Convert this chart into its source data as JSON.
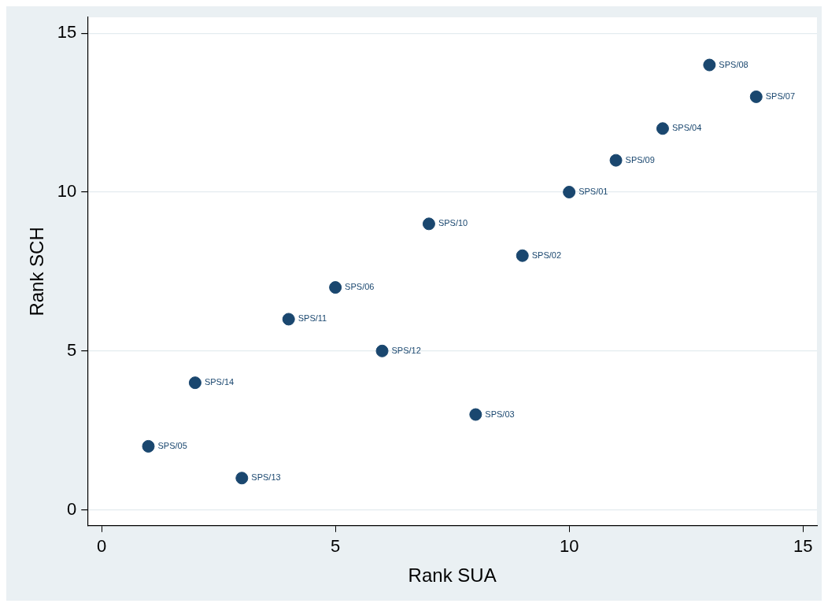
{
  "chart_data": {
    "type": "scatter",
    "xlabel": "Rank SUA",
    "ylabel": "Rank SCH",
    "x": [
      1,
      2,
      3,
      4,
      5,
      6,
      7,
      8,
      9,
      10,
      11,
      12,
      13,
      14
    ],
    "series": [
      {
        "color": "#1a476f",
        "values": [
          2,
          4,
          1,
          6,
          7,
          5,
          9,
          3,
          8,
          10,
          11,
          12,
          14,
          13
        ]
      }
    ],
    "xlim": [
      -0.3,
      15.3
    ],
    "ylim": [
      -0.5,
      15.5
    ],
    "xticks": [
      0,
      5,
      10,
      15
    ],
    "yticks": [
      0,
      5,
      10,
      15
    ],
    "grid": "y",
    "legend": false,
    "marker": "circle",
    "annotations": [
      {
        "text": "SPS/05",
        "x": 1,
        "y": 2
      },
      {
        "text": "SPS/14",
        "x": 2,
        "y": 4
      },
      {
        "text": "SPS/13",
        "x": 3,
        "y": 1
      },
      {
        "text": "SPS/11",
        "x": 4,
        "y": 6
      },
      {
        "text": "SPS/06",
        "x": 5,
        "y": 7
      },
      {
        "text": "SPS/12",
        "x": 6,
        "y": 5
      },
      {
        "text": "SPS/10",
        "x": 7,
        "y": 9
      },
      {
        "text": "SPS/03",
        "x": 8,
        "y": 3
      },
      {
        "text": "SPS/02",
        "x": 9,
        "y": 8
      },
      {
        "text": "SPS/01",
        "x": 10,
        "y": 10
      },
      {
        "text": "SPS/09",
        "x": 11,
        "y": 11
      },
      {
        "text": "SPS/04",
        "x": 12,
        "y": 12
      },
      {
        "text": "SPS/08",
        "x": 13,
        "y": 14
      },
      {
        "text": "SPS/07",
        "x": 14,
        "y": 13
      }
    ]
  }
}
